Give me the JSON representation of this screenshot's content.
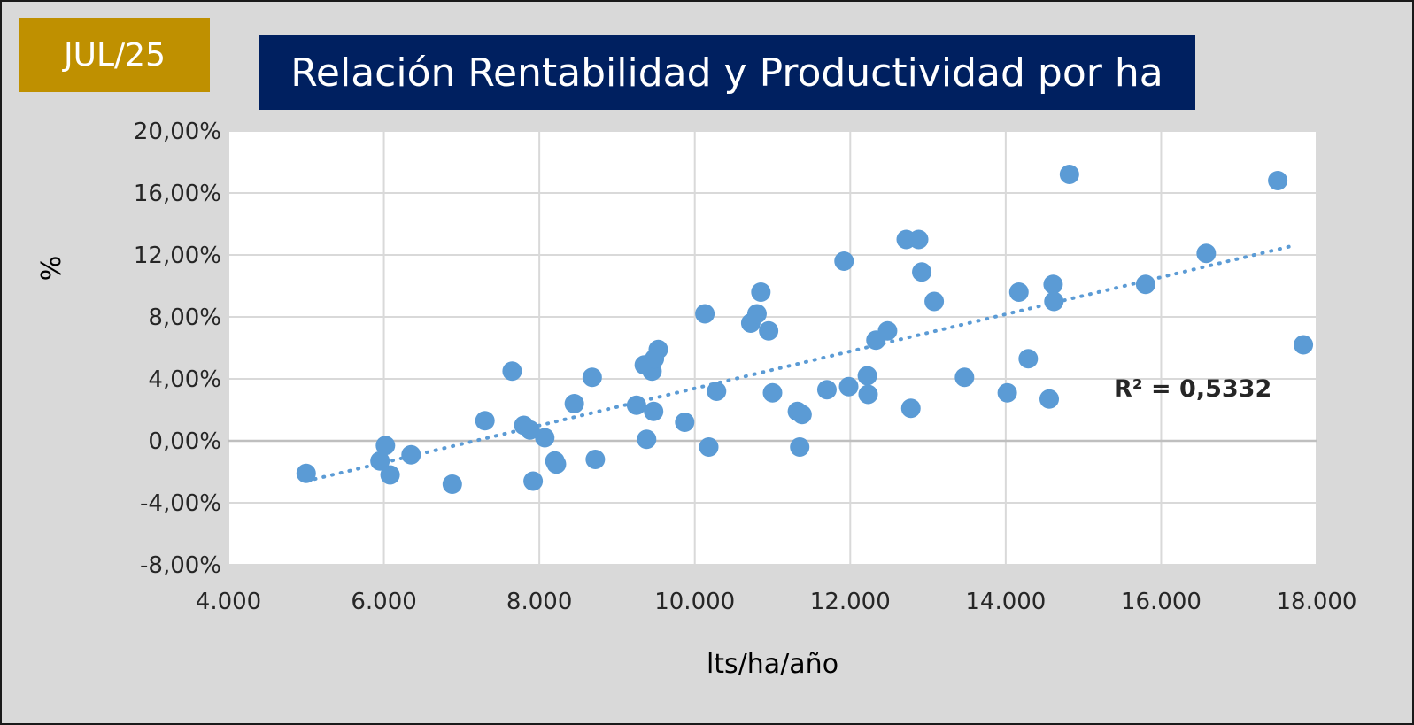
{
  "header": {
    "date_label": "JUL/25",
    "date_color": "#bf9000",
    "title": "Relación Rentabilidad y Productividad por ha",
    "title_color": "#002060"
  },
  "chart_data": {
    "type": "scatter",
    "title": "Relación Rentabilidad y Productividad por ha",
    "xlabel": "lts/ha/año",
    "ylabel": "%",
    "xlim": [
      4000,
      18000
    ],
    "ylim": [
      -8,
      20
    ],
    "xticks": [
      4000,
      6000,
      8000,
      10000,
      12000,
      14000,
      16000,
      18000
    ],
    "xtick_labels": [
      "4.000",
      "6.000",
      "8.000",
      "10.000",
      "12.000",
      "14.000",
      "16.000",
      "18.000"
    ],
    "yticks": [
      -8,
      -4,
      0,
      4,
      8,
      12,
      16,
      20
    ],
    "ytick_labels": [
      "-8,00%",
      "-4,00%",
      "0,00%",
      "4,00%",
      "8,00%",
      "12,00%",
      "16,00%",
      "20,00%"
    ],
    "grid": true,
    "point_color": "#5b9bd5",
    "trendline": {
      "type": "linear",
      "x_start": 5000,
      "y_start": -2.6,
      "x_end": 17700,
      "y_end": 12.6,
      "style": "dotted",
      "color": "#5b9bd5"
    },
    "annotation": "R² = 0,5332",
    "points": [
      {
        "x": 5000,
        "y": -2.1
      },
      {
        "x": 5950,
        "y": -1.3
      },
      {
        "x": 6020,
        "y": -0.3
      },
      {
        "x": 6080,
        "y": -2.2
      },
      {
        "x": 6350,
        "y": -0.9
      },
      {
        "x": 6880,
        "y": -2.8
      },
      {
        "x": 7300,
        "y": 1.3
      },
      {
        "x": 7650,
        "y": 4.5
      },
      {
        "x": 7800,
        "y": 1.0
      },
      {
        "x": 7880,
        "y": 0.7
      },
      {
        "x": 7920,
        "y": -2.6
      },
      {
        "x": 8070,
        "y": 0.2
      },
      {
        "x": 8200,
        "y": -1.3
      },
      {
        "x": 8220,
        "y": -1.5
      },
      {
        "x": 8450,
        "y": 2.4
      },
      {
        "x": 8680,
        "y": 4.1
      },
      {
        "x": 8720,
        "y": -1.2
      },
      {
        "x": 9250,
        "y": 2.3
      },
      {
        "x": 9350,
        "y": 4.9
      },
      {
        "x": 9380,
        "y": 0.1
      },
      {
        "x": 9450,
        "y": 4.5
      },
      {
        "x": 9470,
        "y": 1.9
      },
      {
        "x": 9480,
        "y": 5.3
      },
      {
        "x": 9530,
        "y": 5.9
      },
      {
        "x": 9870,
        "y": 1.2
      },
      {
        "x": 10130,
        "y": 8.2
      },
      {
        "x": 10180,
        "y": -0.4
      },
      {
        "x": 10280,
        "y": 3.2
      },
      {
        "x": 10720,
        "y": 7.6
      },
      {
        "x": 10800,
        "y": 8.2
      },
      {
        "x": 10850,
        "y": 9.6
      },
      {
        "x": 10950,
        "y": 7.1
      },
      {
        "x": 11000,
        "y": 3.1
      },
      {
        "x": 11320,
        "y": 1.9
      },
      {
        "x": 11350,
        "y": -0.4
      },
      {
        "x": 11380,
        "y": 1.7
      },
      {
        "x": 11700,
        "y": 3.3
      },
      {
        "x": 11920,
        "y": 11.6
      },
      {
        "x": 11980,
        "y": 3.5
      },
      {
        "x": 12220,
        "y": 4.2
      },
      {
        "x": 12230,
        "y": 3.0
      },
      {
        "x": 12330,
        "y": 6.5
      },
      {
        "x": 12480,
        "y": 7.1
      },
      {
        "x": 12720,
        "y": 13.0
      },
      {
        "x": 12780,
        "y": 2.1
      },
      {
        "x": 12880,
        "y": 13.0
      },
      {
        "x": 12920,
        "y": 10.9
      },
      {
        "x": 13080,
        "y": 9.0
      },
      {
        "x": 13470,
        "y": 4.1
      },
      {
        "x": 14020,
        "y": 3.1
      },
      {
        "x": 14170,
        "y": 9.6
      },
      {
        "x": 14290,
        "y": 5.3
      },
      {
        "x": 14560,
        "y": 2.7
      },
      {
        "x": 14610,
        "y": 10.1
      },
      {
        "x": 14620,
        "y": 9.0
      },
      {
        "x": 14820,
        "y": 17.2
      },
      {
        "x": 15800,
        "y": 10.1
      },
      {
        "x": 16580,
        "y": 12.1
      },
      {
        "x": 17500,
        "y": 16.8
      },
      {
        "x": 17830,
        "y": 6.2
      }
    ]
  }
}
